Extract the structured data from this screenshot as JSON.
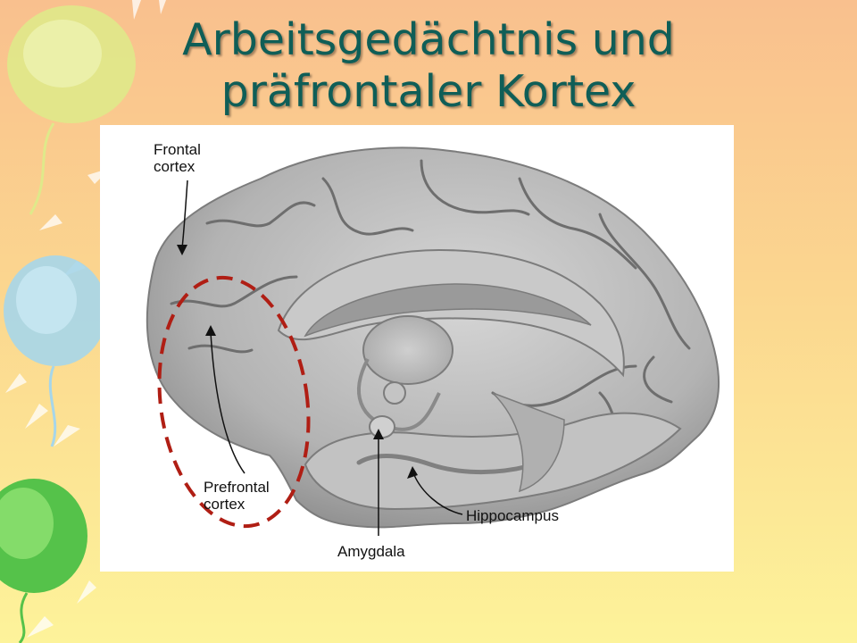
{
  "slide": {
    "title_line1": "Arbeitsgedächtnis und",
    "title_line2": "präfrontaler Kortex"
  },
  "figure": {
    "labels": {
      "frontal_line1": "Frontal",
      "frontal_line2": "cortex",
      "prefrontal_line1": "Prefrontal",
      "prefrontal_line2": "cortex",
      "hippocampus": "Hippocampus",
      "amygdala": "Amygdala"
    },
    "highlight_color": "#b01e14"
  },
  "theme": {
    "title_color": "#0f5e57",
    "background_top": "#f9c08e",
    "background_bottom": "#fdf39a"
  }
}
